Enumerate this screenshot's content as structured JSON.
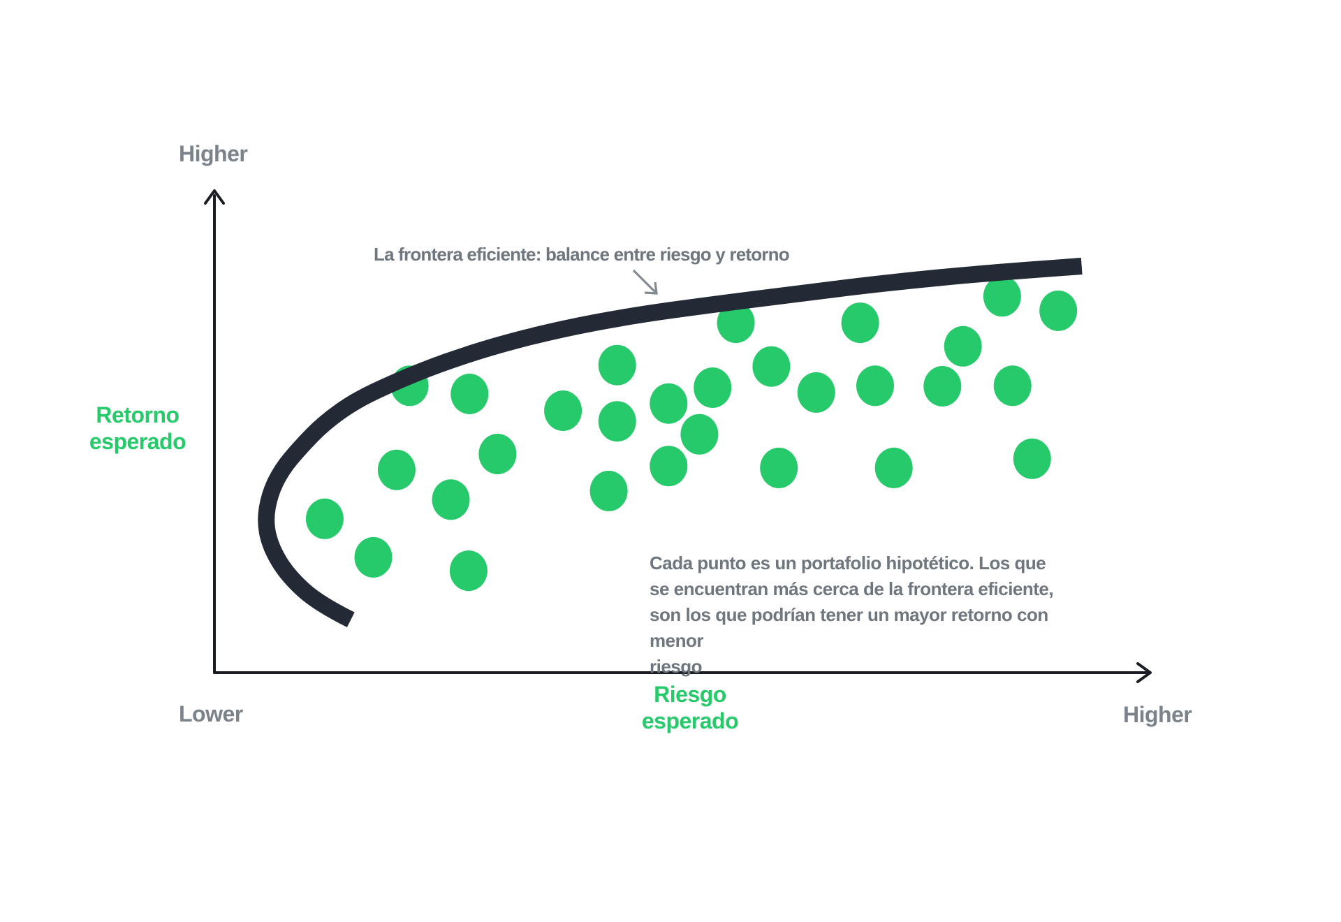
{
  "labels": {
    "y_axis_top": "Higher",
    "x_axis_left": "Lower",
    "x_axis_right": "Higher",
    "y_axis_title": "Retorno\nesperado",
    "x_axis_title": "Riesgo esperado"
  },
  "annotations": {
    "frontier_title": "La frontera eficiente: balance entre riesgo y retorno",
    "portfolio_note": "Cada punto es un portafolio hipotético. Los que\nse encuentran más cerca de la frontera eficiente,\nson los que podrían tener un mayor retorno con menor\nriesgo"
  },
  "colors": {
    "green": "#27CA6B",
    "curve": "#242A35",
    "gray_text": "#6F767E",
    "axis_gray": "#7B828A",
    "axis": "#1A1D23",
    "arrow_gray": "#838A92",
    "background": "#FFFFFF"
  },
  "chart_data": {
    "type": "scatter",
    "title": "La frontera eficiente: balance entre riesgo y retorno",
    "xlabel": "Riesgo esperado",
    "ylabel": "Retorno esperado",
    "x_range_qualitative": [
      "Lower",
      "Higher"
    ],
    "y_range_qualitative": [
      "Lower",
      "Higher"
    ],
    "axis_scale_note": "qualitative axes, values normalized 0-100",
    "grid": false,
    "legend": false,
    "points": [
      {
        "risk": 11.8,
        "return": 32.0
      },
      {
        "risk": 17.0,
        "return": 24.0
      },
      {
        "risk": 19.5,
        "return": 42.2
      },
      {
        "risk": 20.9,
        "return": 59.7
      },
      {
        "risk": 25.3,
        "return": 36.0
      },
      {
        "risk": 27.3,
        "return": 58.0
      },
      {
        "risk": 27.2,
        "return": 21.2
      },
      {
        "risk": 30.3,
        "return": 45.5
      },
      {
        "risk": 37.3,
        "return": 54.5
      },
      {
        "risk": 42.2,
        "return": 37.8
      },
      {
        "risk": 43.1,
        "return": 64.0
      },
      {
        "risk": 43.1,
        "return": 52.3
      },
      {
        "risk": 48.6,
        "return": 56.0
      },
      {
        "risk": 48.6,
        "return": 43.0
      },
      {
        "risk": 51.9,
        "return": 49.6
      },
      {
        "risk": 53.3,
        "return": 59.3
      },
      {
        "risk": 55.8,
        "return": 72.8
      },
      {
        "risk": 59.6,
        "return": 63.7
      },
      {
        "risk": 60.4,
        "return": 42.6
      },
      {
        "risk": 64.4,
        "return": 58.3
      },
      {
        "risk": 69.1,
        "return": 72.8
      },
      {
        "risk": 70.7,
        "return": 59.7
      },
      {
        "risk": 72.7,
        "return": 42.6
      },
      {
        "risk": 77.9,
        "return": 59.6
      },
      {
        "risk": 80.1,
        "return": 67.9
      },
      {
        "risk": 84.3,
        "return": 78.3
      },
      {
        "risk": 85.4,
        "return": 59.7
      },
      {
        "risk": 87.5,
        "return": 44.5
      },
      {
        "risk": 90.3,
        "return": 75.3
      }
    ],
    "frontier_curve": [
      [
        14.6,
        11.0
      ],
      [
        11.1,
        14.4
      ],
      [
        7.9,
        20.1
      ],
      [
        6.1,
        25.7
      ],
      [
        5.4,
        31.3
      ],
      [
        5.9,
        37.1
      ],
      [
        7.2,
        42.3
      ],
      [
        9.2,
        46.9
      ],
      [
        11.7,
        51.9
      ],
      [
        15.0,
        56.5
      ],
      [
        19.1,
        60.3
      ],
      [
        24.0,
        64.2
      ],
      [
        29.8,
        67.9
      ],
      [
        36.8,
        71.4
      ],
      [
        44.7,
        74.3
      ],
      [
        53.3,
        76.6
      ],
      [
        62.6,
        78.9
      ],
      [
        72.7,
        81.3
      ],
      [
        82.4,
        83.1
      ],
      [
        92.8,
        84.6
      ]
    ]
  }
}
